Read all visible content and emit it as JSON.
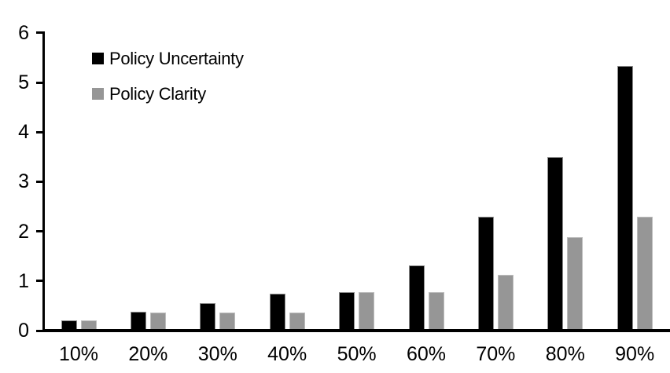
{
  "chart_data": {
    "type": "bar",
    "title": "",
    "xlabel": "",
    "ylabel": "",
    "categories": [
      "10%",
      "20%",
      "30%",
      "40%",
      "50%",
      "60%",
      "70%",
      "80%",
      "90%"
    ],
    "series": [
      {
        "name": "Policy Uncertainty",
        "color": "#000000",
        "border_color": "#8c8c8c",
        "values": [
          0.2,
          0.38,
          0.55,
          0.75,
          0.78,
          1.32,
          2.3,
          3.5,
          5.33
        ]
      },
      {
        "name": "Policy Clarity",
        "color": "#969696",
        "border_color": "#bdbdbd",
        "values": [
          0.2,
          0.37,
          0.37,
          0.37,
          0.77,
          0.77,
          1.12,
          1.88,
          2.29
        ]
      }
    ],
    "ylim": [
      0,
      6
    ],
    "yticks": [
      0,
      1,
      2,
      3,
      4,
      5,
      6
    ],
    "grid": false,
    "legend_position": "inside-top-left",
    "background": "#ffffff"
  }
}
